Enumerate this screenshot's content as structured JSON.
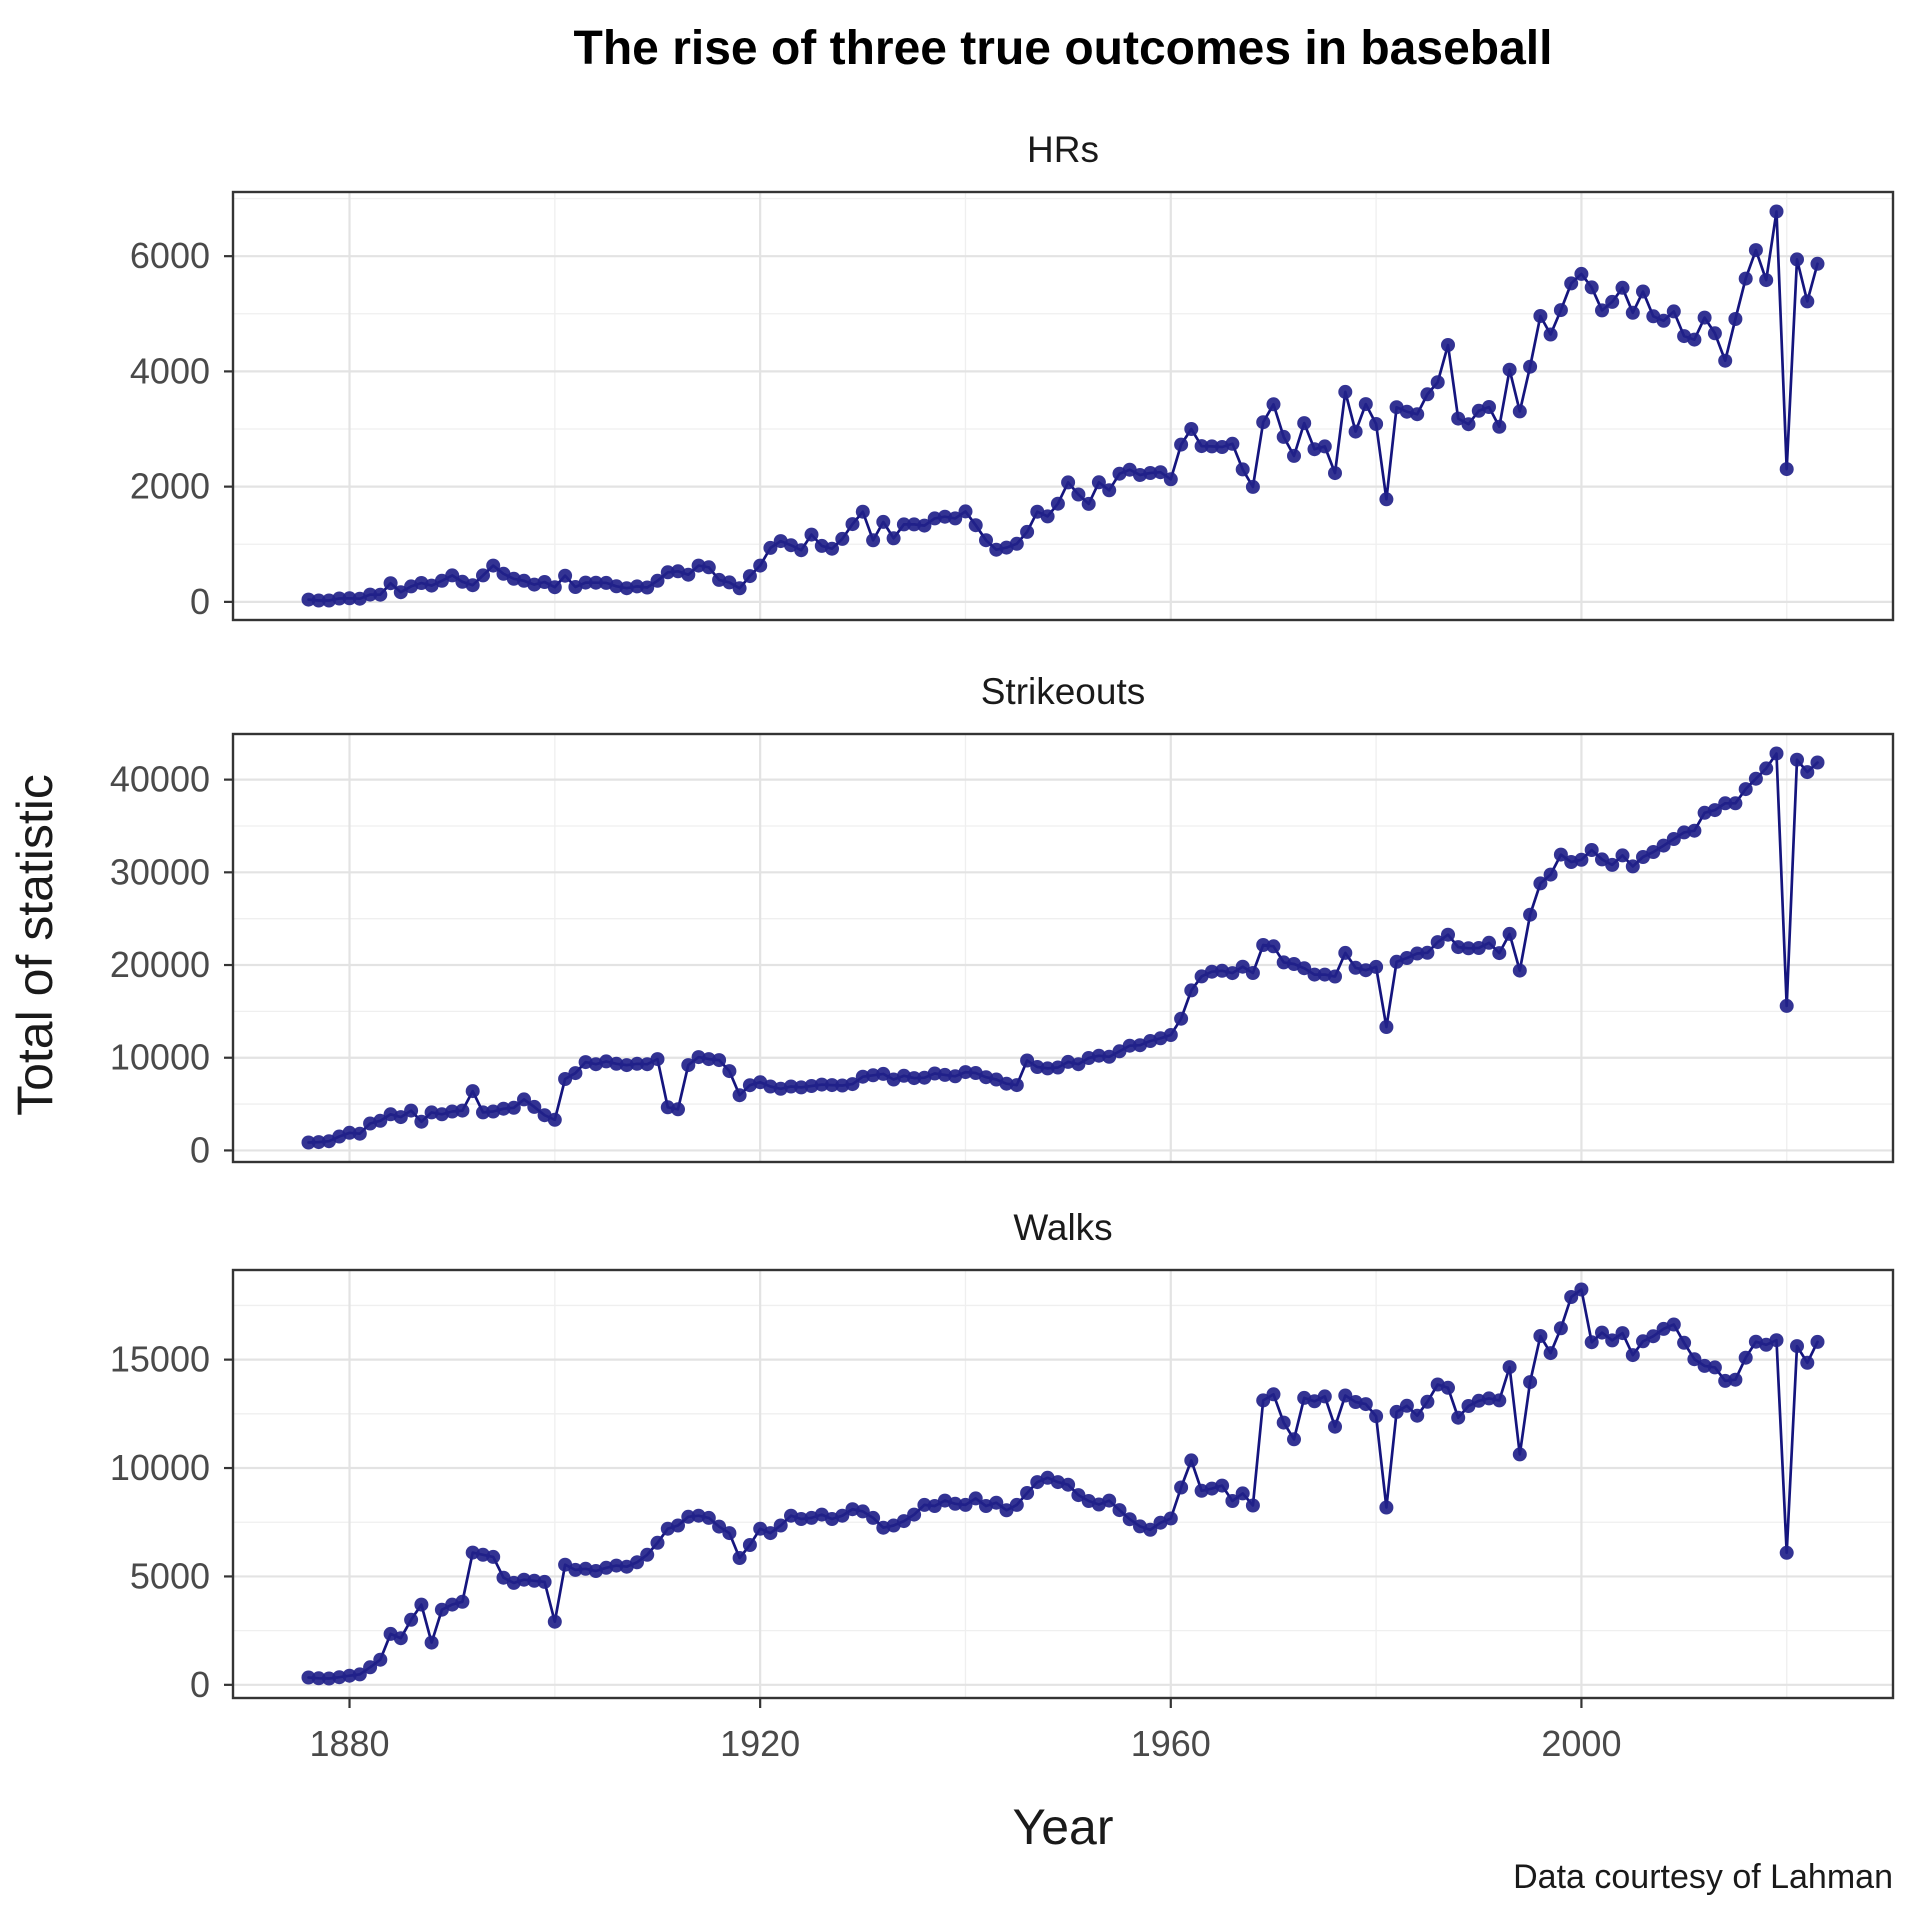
{
  "title": "The rise of three true outcomes in baseball",
  "caption": "Data courtesy of Lahman",
  "colors": {
    "series_line": "#15157E",
    "series_point": "#22228A",
    "grid_major": "#E3E3E3",
    "grid_minor": "#EFEFEF",
    "panel_border": "#343434",
    "tick_mark": "#343434",
    "tick_label": "#4A4A4A",
    "panel_bg": "#FFFFFF"
  },
  "chart_data": {
    "type": "line",
    "layout": "three vertically stacked facets sharing the x axis, points plus connecting line, white panels, light grey major and minor grid, dark panel border",
    "xlabel": "Year",
    "ylabel": "Total of statistic",
    "x_ticks": [
      1880,
      1920,
      1960,
      2000
    ],
    "x_minor_ticks": [
      1900,
      1940,
      1980,
      2020
    ],
    "xlim": [
      1876,
      2023
    ],
    "x": [
      1876,
      1877,
      1878,
      1879,
      1880,
      1881,
      1882,
      1883,
      1884,
      1885,
      1886,
      1887,
      1888,
      1889,
      1890,
      1891,
      1892,
      1893,
      1894,
      1895,
      1896,
      1897,
      1898,
      1899,
      1900,
      1901,
      1902,
      1903,
      1904,
      1905,
      1906,
      1907,
      1908,
      1909,
      1910,
      1911,
      1912,
      1913,
      1914,
      1915,
      1916,
      1917,
      1918,
      1919,
      1920,
      1921,
      1922,
      1923,
      1924,
      1925,
      1926,
      1927,
      1928,
      1929,
      1930,
      1931,
      1932,
      1933,
      1934,
      1935,
      1936,
      1937,
      1938,
      1939,
      1940,
      1941,
      1942,
      1943,
      1944,
      1945,
      1946,
      1947,
      1948,
      1949,
      1950,
      1951,
      1952,
      1953,
      1954,
      1955,
      1956,
      1957,
      1958,
      1959,
      1960,
      1961,
      1962,
      1963,
      1964,
      1965,
      1966,
      1967,
      1968,
      1969,
      1970,
      1971,
      1972,
      1973,
      1974,
      1975,
      1976,
      1977,
      1978,
      1979,
      1980,
      1981,
      1982,
      1983,
      1984,
      1985,
      1986,
      1987,
      1988,
      1989,
      1990,
      1991,
      1992,
      1993,
      1994,
      1995,
      1996,
      1997,
      1998,
      1999,
      2000,
      2001,
      2002,
      2003,
      2004,
      2005,
      2006,
      2007,
      2008,
      2009,
      2010,
      2011,
      2012,
      2013,
      2014,
      2015,
      2016,
      2017,
      2018,
      2019,
      2020,
      2021,
      2022,
      2023
    ],
    "facets": [
      {
        "title": "HRs",
        "y_ticks": [
          0,
          2000,
          4000,
          6000
        ],
        "values": [
          40,
          24,
          23,
          58,
          62,
          55,
          127,
          124,
          324,
          168,
          268,
          327,
          283,
          366,
          460,
          349,
          290,
          460,
          629,
          488,
          401,
          365,
          300,
          345,
          254,
          455,
          258,
          335,
          333,
          329,
          271,
          238,
          269,
          250,
          365,
          514,
          530,
          472,
          629,
          600,
          381,
          338,
          235,
          447,
          630,
          937,
          1055,
          983,
          897,
          1167,
          972,
          922,
          1093,
          1349,
          1565,
          1069,
          1388,
          1103,
          1344,
          1345,
          1323,
          1449,
          1478,
          1449,
          1571,
          1331,
          1071,
          905,
          942,
          1007,
          1215,
          1565,
          1483,
          1704,
          2073,
          1863,
          1701,
          2076,
          1937,
          2224,
          2294,
          2202,
          2236,
          2250,
          2128,
          2730,
          3001,
          2704,
          2699,
          2688,
          2743,
          2299,
          1995,
          3119,
          3429,
          2863,
          2534,
          3102,
          2649,
          2698,
          2235,
          3644,
          2956,
          3433,
          3087,
          1781,
          3379,
          3301,
          3258,
          3602,
          3813,
          4458,
          3180,
          3083,
          3317,
          3383,
          3038,
          4030,
          3306,
          4081,
          4962,
          4640,
          5064,
          5528,
          5693,
          5458,
          5059,
          5207,
          5451,
          5017,
          5386,
          4957,
          4878,
          5042,
          4613,
          4552,
          4934,
          4661,
          4186,
          4909,
          5610,
          6105,
          5585,
          6776,
          2304,
          5944,
          5215,
          5868
        ]
      },
      {
        "title": "Strikeouts",
        "y_ticks": [
          0,
          10000,
          20000,
          30000,
          40000
        ],
        "values": [
          850,
          900,
          1000,
          1500,
          1900,
          1800,
          2900,
          3200,
          3900,
          3600,
          4300,
          3100,
          4100,
          3900,
          4200,
          4300,
          6400,
          4100,
          4200,
          4500,
          4600,
          5500,
          4700,
          3800,
          3300,
          7700,
          8340,
          9530,
          9300,
          9600,
          9350,
          9200,
          9350,
          9300,
          9850,
          4650,
          4440,
          9200,
          10070,
          9850,
          9745,
          8555,
          5956,
          7040,
          7360,
          6900,
          6650,
          6900,
          6800,
          6950,
          7100,
          7050,
          7000,
          7150,
          7950,
          8100,
          8250,
          7650,
          8050,
          7800,
          7850,
          8300,
          8150,
          8000,
          8450,
          8350,
          7900,
          7650,
          7200,
          7050,
          9700,
          9000,
          8850,
          8950,
          9550,
          9300,
          9970,
          10220,
          10100,
          10690,
          11300,
          11350,
          11800,
          12100,
          12448,
          14205,
          17262,
          18773,
          19276,
          19379,
          19131,
          19817,
          19143,
          22161,
          22021,
          20287,
          20112,
          19662,
          18969,
          18972,
          18763,
          21306,
          19701,
          19441,
          19799,
          13313,
          20345,
          20760,
          21240,
          21323,
          22473,
          23269,
          21930,
          21803,
          21840,
          22393,
          21283,
          23357,
          19400,
          25425,
          28800,
          29750,
          31908,
          31119,
          31356,
          32404,
          31394,
          30801,
          31828,
          30644,
          31655,
          32189,
          32884,
          33591,
          34306,
          34488,
          36426,
          36710,
          37441,
          37446,
          38982,
          40104,
          41207,
          42823,
          15586,
          42145,
          40812,
          41843
        ]
      },
      {
        "title": "Walks",
        "y_ticks": [
          0,
          5000,
          10000,
          15000
        ],
        "values": [
          337,
          300,
          290,
          350,
          420,
          480,
          810,
          1160,
          2350,
          2150,
          3000,
          3700,
          1950,
          3465,
          3700,
          3830,
          6100,
          6000,
          5900,
          4940,
          4700,
          4850,
          4800,
          4750,
          2910,
          5540,
          5300,
          5350,
          5250,
          5400,
          5500,
          5450,
          5650,
          6000,
          6550,
          7200,
          7350,
          7750,
          7800,
          7700,
          7300,
          7000,
          5850,
          6450,
          7200,
          7000,
          7350,
          7800,
          7650,
          7700,
          7850,
          7650,
          7800,
          8100,
          8000,
          7700,
          7250,
          7350,
          7550,
          7850,
          8300,
          8250,
          8500,
          8350,
          8300,
          8600,
          8250,
          8400,
          8050,
          8300,
          8850,
          9350,
          9550,
          9350,
          9230,
          8750,
          8480,
          8320,
          8500,
          8060,
          7640,
          7310,
          7150,
          7480,
          7670,
          9100,
          10350,
          8950,
          9050,
          9190,
          8480,
          8830,
          8270,
          13120,
          13400,
          12095,
          11325,
          13236,
          13078,
          13304,
          11908,
          13344,
          13046,
          12949,
          12393,
          8179,
          12589,
          12869,
          12416,
          13057,
          13852,
          13700,
          12322,
          12861,
          13100,
          13214,
          13120,
          14654,
          10629,
          13963,
          16088,
          15303,
          16447,
          17891,
          18237,
          15806,
          16246,
          15889,
          16222,
          15207,
          15847,
          16079,
          16416,
          16620,
          15778,
          15018,
          14709,
          14640,
          14020,
          14073,
          15088,
          15829,
          15686,
          15895,
          6092,
          15622,
          14853,
          15819
        ]
      }
    ]
  }
}
